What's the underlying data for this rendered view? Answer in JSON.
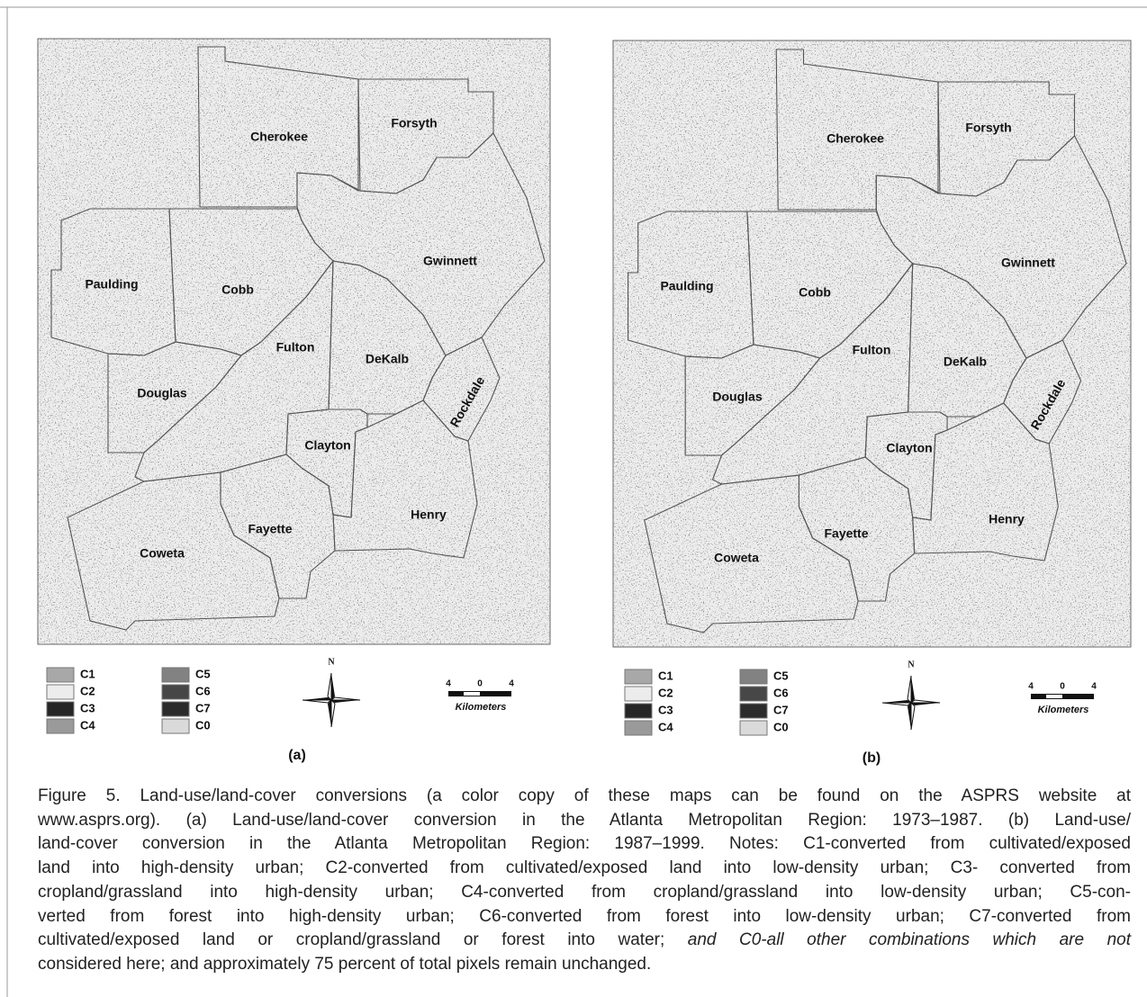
{
  "panels": [
    {
      "label": "(a)",
      "counties": [
        "Cherokee",
        "Forsyth",
        "Gwinnett",
        "Paulding",
        "Cobb",
        "Fulton",
        "DeKalb",
        "Rockdale",
        "Douglas",
        "Clayton",
        "Henry",
        "Fayette",
        "Coweta"
      ],
      "legend": [
        {
          "code": "C1",
          "color": "#a8a8a8"
        },
        {
          "code": "C2",
          "color": "#ececec"
        },
        {
          "code": "C3",
          "color": "#262626"
        },
        {
          "code": "C4",
          "color": "#9a9a9a"
        },
        {
          "code": "C5",
          "color": "#828282"
        },
        {
          "code": "C6",
          "color": "#474747"
        },
        {
          "code": "C7",
          "color": "#2c2c2c"
        },
        {
          "code": "C0",
          "color": "#dadada"
        }
      ],
      "north": "N",
      "scale": {
        "ticks": [
          "4",
          "0",
          "4"
        ],
        "unit": "Kilometers"
      }
    },
    {
      "label": "(b)",
      "counties": [
        "Cherokee",
        "Forsyth",
        "Gwinnett",
        "Paulding",
        "Cobb",
        "Fulton",
        "DeKalb",
        "Rockdale",
        "Douglas",
        "Clayton",
        "Henry",
        "Fayette",
        "Coweta"
      ],
      "legend": [
        {
          "code": "C1",
          "color": "#a8a8a8"
        },
        {
          "code": "C2",
          "color": "#ececec"
        },
        {
          "code": "C3",
          "color": "#262626"
        },
        {
          "code": "C4",
          "color": "#9a9a9a"
        },
        {
          "code": "C5",
          "color": "#828282"
        },
        {
          "code": "C6",
          "color": "#474747"
        },
        {
          "code": "C7",
          "color": "#2c2c2c"
        },
        {
          "code": "C0",
          "color": "#dadada"
        }
      ],
      "north": "N",
      "scale": {
        "ticks": [
          "4",
          "0",
          "4"
        ],
        "unit": "Kilometers"
      }
    }
  ],
  "caption": {
    "lines": [
      [
        "Figure 5.  Land-use/land-cover conversions (a color copy of these maps can be found on the ASPRS website at"
      ],
      [
        "www.asprs.org). (a) Land-use/land-cover conversion in the Atlanta Metropolitan Region: 1973–1987. (b) Land-use/"
      ],
      [
        "land-cover conversion in the Atlanta Metropolitan Region: 1987–1999. Notes: C1-converted from cultivated/exposed"
      ],
      [
        "land into high-density urban; C2-converted from cultivated/exposed land into low-density urban; C3- converted from"
      ],
      [
        "cropland/grassland into high-density urban; C4-converted from cropland/grassland into low-density urban; C5-con-"
      ],
      [
        "verted from forest into high-density urban; C6-converted from forest into low-density urban; C7-converted from"
      ],
      [
        "cultivated/exposed land or cropland/grassland or forest into water;",
        "and C0-all other combinations which are not"
      ],
      [
        "considered here; and approximately 75 percent of total pixels remain unchanged."
      ]
    ]
  }
}
